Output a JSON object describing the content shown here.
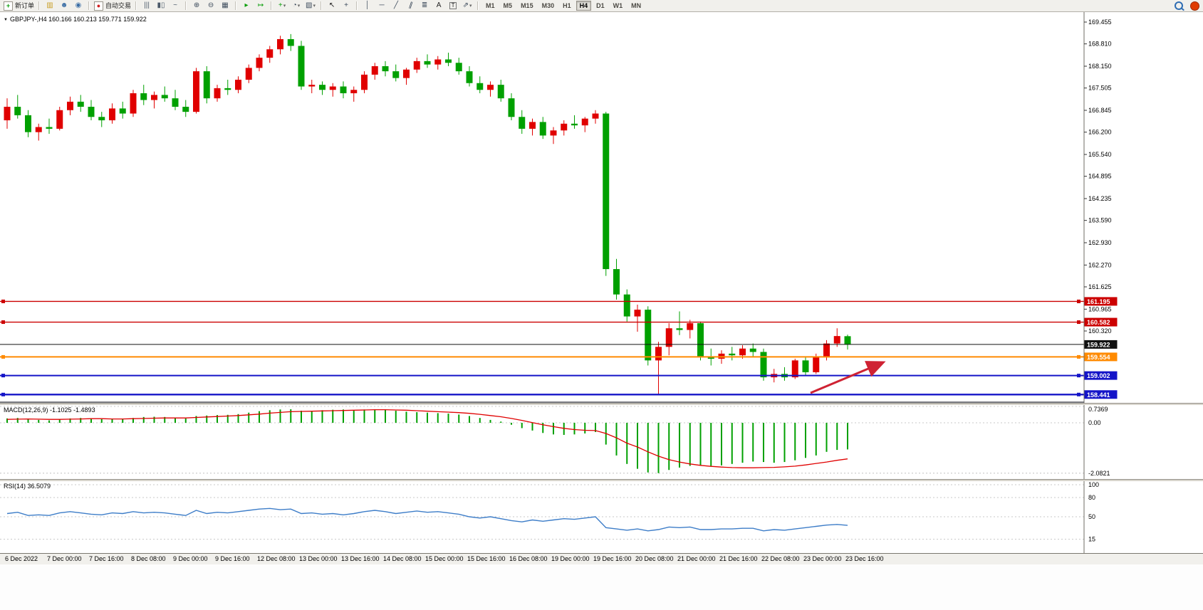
{
  "icons": {
    "caret": "▾",
    "chart_menu_arrow": "▼"
  },
  "toolbar": {
    "groups": [
      {
        "name": "trade",
        "items": [
          {
            "name": "new-order-button",
            "type": "labeled",
            "glyph": "+",
            "glyph_color": "#0b9e0b",
            "boxed": true,
            "label": "新订单"
          }
        ]
      },
      {
        "name": "windows",
        "items": [
          {
            "name": "market-watch-icon",
            "type": "icon",
            "glyph": "▥",
            "glyph_color": "#c79b1e"
          },
          {
            "name": "navigator-icon",
            "type": "icon",
            "glyph": "☻",
            "glyph_color": "#3b6ea5"
          },
          {
            "name": "terminal-icon",
            "type": "icon",
            "glyph": "◉",
            "glyph_color": "#3b6ea5"
          }
        ]
      },
      {
        "name": "autotrading",
        "items": [
          {
            "name": "auto-trading-button",
            "type": "labeled",
            "glyph": "●",
            "glyph_color": "#d22020",
            "boxed": true,
            "label": "自动交易"
          }
        ]
      },
      {
        "name": "chart-types",
        "items": [
          {
            "name": "bars-chart-button",
            "type": "icon",
            "glyph": "|||",
            "glyph_color": "#4c5a6a"
          },
          {
            "name": "candlestick-chart-button",
            "type": "icon",
            "glyph": "▮▯",
            "glyph_color": "#4c5a6a"
          },
          {
            "name": "line-chart-button",
            "type": "icon",
            "glyph": "~",
            "glyph_color": "#4c5a6a"
          }
        ]
      },
      {
        "name": "zoom",
        "items": [
          {
            "name": "zoom-in-button",
            "type": "icon",
            "glyph": "⊕",
            "glyph_color": "#3d4b5c"
          },
          {
            "name": "zoom-out-button",
            "type": "icon",
            "glyph": "⊖",
            "glyph_color": "#3d4b5c"
          },
          {
            "name": "tile-windows-button",
            "type": "icon",
            "glyph": "▦",
            "glyph_color": "#3d4b5c"
          }
        ]
      },
      {
        "name": "scrolling",
        "items": [
          {
            "name": "auto-scroll-button",
            "type": "icon",
            "glyph": "▸",
            "glyph_color": "#0b9e0b"
          },
          {
            "name": "chart-shift-button",
            "type": "icon",
            "glyph": "↦",
            "glyph_color": "#0b9e0b"
          }
        ]
      },
      {
        "name": "dropdowns",
        "items": [
          {
            "name": "indicators-button",
            "type": "icon-caret",
            "glyph": "+",
            "glyph_color": "#0b9e0b"
          },
          {
            "name": "periods-button",
            "type": "icon-caret",
            "glyph": "◔",
            "glyph_color": "#3d4b5c"
          },
          {
            "name": "templates-button",
            "type": "icon-caret",
            "glyph": "▧",
            "glyph_color": "#3d4b5c"
          }
        ]
      },
      {
        "name": "cursor-tools",
        "items": [
          {
            "name": "cursor-button",
            "type": "icon",
            "glyph": "↖",
            "glyph_color": "#111111"
          },
          {
            "name": "crosshair-button",
            "type": "icon",
            "glyph": "+",
            "glyph_color": "#3d4b5c"
          }
        ]
      },
      {
        "name": "draw-tools",
        "items": [
          {
            "name": "vertical-line-button",
            "type": "icon",
            "glyph": "│",
            "glyph_color": "#3d4b5c"
          },
          {
            "name": "horizontal-line-button",
            "type": "icon",
            "glyph": "─",
            "glyph_color": "#3d4b5c"
          },
          {
            "name": "trendline-button",
            "type": "icon",
            "glyph": "╱",
            "glyph_color": "#3d4b5c"
          },
          {
            "name": "channel-button",
            "type": "icon",
            "glyph": "∥",
            "glyph_color": "#3d4b5c",
            "slant": true
          },
          {
            "name": "fibonacci-button",
            "type": "icon",
            "glyph": "≣",
            "glyph_color": "#3d4b5c"
          },
          {
            "name": "text-button",
            "type": "icon",
            "glyph": "A",
            "glyph_color": "#222222"
          },
          {
            "name": "text-label-button",
            "type": "icon",
            "glyph": "T",
            "glyph_color": "#222222",
            "tbox": true
          },
          {
            "name": "arrows-button",
            "type": "icon-caret",
            "glyph": "⇗",
            "glyph_color": "#3d4b5c"
          }
        ]
      },
      {
        "name": "timeframes",
        "items": [
          {
            "name": "tf-m1-button",
            "type": "tf",
            "label": "M1"
          },
          {
            "name": "tf-m5-button",
            "type": "tf",
            "label": "M5"
          },
          {
            "name": "tf-m15-button",
            "type": "tf",
            "label": "M15"
          },
          {
            "name": "tf-m30-button",
            "type": "tf",
            "label": "M30"
          },
          {
            "name": "tf-h1-button",
            "type": "tf",
            "label": "H1"
          },
          {
            "name": "tf-h4-button",
            "type": "tf",
            "label": "H4",
            "active": true
          },
          {
            "name": "tf-d1-button",
            "type": "tf",
            "label": "D1"
          },
          {
            "name": "tf-w1-button",
            "type": "tf",
            "label": "W1"
          },
          {
            "name": "tf-mn-button",
            "type": "tf",
            "label": "MN"
          }
        ]
      }
    ],
    "right": [
      {
        "name": "search-button",
        "type": "search"
      },
      {
        "name": "community-button",
        "type": "badge",
        "color": "#e03c00"
      }
    ]
  },
  "chart_data": [
    {
      "type": "candlestick",
      "symbol": "GBPJPY-",
      "timeframe": "H4",
      "overlay_label": "GBPJPY-,H4 160.166 160.213 159.771 159.922",
      "up_color": "#e00000",
      "down_color": "#00a000",
      "y_ticks": [
        169.455,
        168.81,
        168.15,
        167.505,
        166.845,
        166.2,
        165.54,
        164.895,
        164.235,
        163.59,
        162.93,
        162.27,
        161.625,
        160.965,
        160.32
      ],
      "x_labels": [
        "6 Dec 2022",
        "7 Dec 00:00",
        "7 Dec 16:00",
        "8 Dec 08:00",
        "9 Dec 00:00",
        "9 Dec 16:00",
        "12 Dec 08:00",
        "13 Dec 00:00",
        "13 Dec 16:00",
        "14 Dec 08:00",
        "15 Dec 00:00",
        "15 Dec 16:00",
        "16 Dec 08:00",
        "19 Dec 00:00",
        "19 Dec 16:00",
        "20 Dec 08:00",
        "21 Dec 00:00",
        "21 Dec 16:00",
        "22 Dec 08:00",
        "23 Dec 00:00",
        "23 Dec 16:00"
      ],
      "ohlc": [
        [
          166.55,
          167.2,
          166.3,
          166.95
        ],
        [
          166.95,
          167.3,
          166.6,
          166.7
        ],
        [
          166.7,
          166.85,
          166.05,
          166.2
        ],
        [
          166.2,
          166.45,
          165.95,
          166.35
        ],
        [
          166.35,
          166.6,
          166.15,
          166.3
        ],
        [
          166.3,
          166.95,
          166.25,
          166.85
        ],
        [
          166.85,
          167.25,
          166.7,
          167.1
        ],
        [
          167.1,
          167.3,
          166.8,
          166.95
        ],
        [
          166.95,
          167.15,
          166.55,
          166.65
        ],
        [
          166.65,
          166.8,
          166.35,
          166.55
        ],
        [
          166.55,
          167.05,
          166.45,
          166.9
        ],
        [
          166.9,
          167.1,
          166.6,
          166.75
        ],
        [
          166.75,
          167.45,
          166.65,
          167.35
        ],
        [
          167.35,
          167.6,
          167.0,
          167.15
        ],
        [
          167.15,
          167.4,
          166.9,
          167.3
        ],
        [
          167.3,
          167.55,
          167.1,
          167.2
        ],
        [
          167.2,
          167.45,
          166.85,
          166.95
        ],
        [
          166.95,
          167.15,
          166.65,
          166.8
        ],
        [
          166.8,
          168.1,
          166.75,
          168.0
        ],
        [
          168.0,
          168.15,
          167.05,
          167.2
        ],
        [
          167.2,
          167.6,
          167.1,
          167.5
        ],
        [
          167.5,
          167.75,
          167.3,
          167.45
        ],
        [
          167.45,
          167.85,
          167.35,
          167.75
        ],
        [
          167.75,
          168.2,
          167.65,
          168.1
        ],
        [
          168.1,
          168.5,
          168.0,
          168.4
        ],
        [
          168.4,
          168.75,
          168.25,
          168.65
        ],
        [
          168.65,
          169.05,
          168.5,
          168.95
        ],
        [
          168.95,
          169.1,
          168.6,
          168.75
        ],
        [
          168.75,
          168.9,
          167.45,
          167.55
        ],
        [
          167.55,
          167.75,
          167.35,
          167.6
        ],
        [
          167.6,
          167.7,
          167.3,
          167.45
        ],
        [
          167.45,
          167.65,
          167.25,
          167.55
        ],
        [
          167.55,
          167.7,
          167.2,
          167.35
        ],
        [
          167.35,
          167.55,
          167.1,
          167.45
        ],
        [
          167.45,
          168.0,
          167.35,
          167.9
        ],
        [
          167.9,
          168.25,
          167.75,
          168.15
        ],
        [
          168.15,
          168.3,
          167.85,
          168.0
        ],
        [
          168.0,
          168.2,
          167.7,
          167.8
        ],
        [
          167.8,
          168.1,
          167.6,
          168.05
        ],
        [
          168.05,
          168.4,
          167.95,
          168.3
        ],
        [
          168.3,
          168.5,
          168.1,
          168.2
        ],
        [
          168.2,
          168.45,
          168.05,
          168.35
        ],
        [
          168.35,
          168.55,
          168.15,
          168.25
        ],
        [
          168.25,
          168.4,
          167.9,
          168.0
        ],
        [
          168.0,
          168.15,
          167.55,
          167.65
        ],
        [
          167.65,
          167.85,
          167.35,
          167.45
        ],
        [
          167.45,
          167.7,
          167.25,
          167.6
        ],
        [
          167.6,
          167.75,
          167.1,
          167.2
        ],
        [
          167.2,
          167.35,
          166.55,
          166.65
        ],
        [
          166.65,
          166.85,
          166.15,
          166.3
        ],
        [
          166.3,
          166.6,
          166.1,
          166.5
        ],
        [
          166.5,
          166.65,
          166.0,
          166.1
        ],
        [
          166.1,
          166.35,
          165.85,
          166.25
        ],
        [
          166.25,
          166.55,
          166.1,
          166.45
        ],
        [
          166.45,
          166.7,
          166.3,
          166.4
        ],
        [
          166.4,
          166.65,
          166.2,
          166.6
        ],
        [
          166.6,
          166.85,
          166.45,
          166.75
        ],
        [
          166.75,
          166.8,
          161.95,
          162.15
        ],
        [
          162.15,
          162.45,
          161.25,
          161.4
        ],
        [
          161.4,
          161.55,
          160.6,
          160.75
        ],
        [
          160.75,
          161.1,
          160.3,
          160.95
        ],
        [
          160.95,
          161.05,
          159.3,
          159.45
        ],
        [
          159.45,
          160.0,
          158.45,
          159.85
        ],
        [
          159.85,
          160.55,
          159.6,
          160.4
        ],
        [
          160.4,
          160.9,
          160.2,
          160.35
        ],
        [
          160.35,
          160.65,
          160.1,
          160.55
        ],
        [
          160.55,
          160.6,
          159.45,
          159.55
        ],
        [
          159.55,
          159.8,
          159.3,
          159.5
        ],
        [
          159.5,
          159.75,
          159.35,
          159.65
        ],
        [
          159.65,
          159.85,
          159.45,
          159.6
        ],
        [
          159.6,
          159.9,
          159.5,
          159.8
        ],
        [
          159.8,
          159.95,
          159.55,
          159.7
        ],
        [
          159.7,
          159.8,
          158.85,
          158.95
        ],
        [
          158.95,
          159.2,
          158.8,
          159.05
        ],
        [
          159.05,
          159.25,
          158.85,
          158.95
        ],
        [
          158.95,
          159.5,
          158.9,
          159.45
        ],
        [
          159.45,
          159.55,
          159.0,
          159.1
        ],
        [
          159.1,
          159.65,
          159.05,
          159.55
        ],
        [
          159.55,
          160.05,
          159.45,
          159.95
        ],
        [
          159.95,
          160.4,
          159.85,
          160.17
        ],
        [
          160.166,
          160.213,
          159.771,
          159.922
        ]
      ],
      "horizontal_lines": [
        {
          "price": 161.195,
          "label": "161.195",
          "color": "#cc0000",
          "width": 1.4
        },
        {
          "price": 160.582,
          "label": "160.582",
          "color": "#cc0000",
          "width": 1.4
        },
        {
          "price": 159.554,
          "label": "159.554",
          "color": "#ff8a00",
          "width": 2
        },
        {
          "price": 159.002,
          "label": "159.002",
          "color": "#1414c8",
          "width": 2
        },
        {
          "price": 158.441,
          "label": "158.441",
          "color": "#1414c8",
          "width": 2.4
        }
      ],
      "current_price": {
        "price": 159.922,
        "label": "159.922",
        "color": "#111111"
      },
      "arrow": {
        "color": "#cf2233"
      }
    },
    {
      "type": "bar",
      "name": "MACD(12,26,9)",
      "overlay_label": "MACD(12,26,9) -1.1025 -1.4893",
      "histogram_color": "#00a000",
      "signal_color": "#e00000",
      "y_ticks": [
        0.7369,
        0,
        -2.0821
      ],
      "y_tick_labels": [
        "0.7369",
        "0.00",
        "-2.0821"
      ],
      "values": [
        0.18,
        0.2,
        0.15,
        0.12,
        0.1,
        0.14,
        0.18,
        0.2,
        0.17,
        0.15,
        0.16,
        0.15,
        0.2,
        0.24,
        0.25,
        0.24,
        0.2,
        0.18,
        0.28,
        0.3,
        0.32,
        0.33,
        0.36,
        0.42,
        0.48,
        0.52,
        0.55,
        0.56,
        0.5,
        0.48,
        0.52,
        0.54,
        0.55,
        0.53,
        0.55,
        0.56,
        0.54,
        0.5,
        0.46,
        0.44,
        0.42,
        0.4,
        0.38,
        0.34,
        0.28,
        0.2,
        0.12,
        0.05,
        -0.08,
        -0.22,
        -0.32,
        -0.42,
        -0.48,
        -0.5,
        -0.48,
        -0.44,
        -0.38,
        -0.9,
        -1.35,
        -1.7,
        -1.9,
        -2.05,
        -2.08,
        -1.95,
        -1.85,
        -1.78,
        -1.75,
        -1.78,
        -1.76,
        -1.7,
        -1.65,
        -1.6,
        -1.62,
        -1.65,
        -1.62,
        -1.55,
        -1.45,
        -1.35,
        -1.2,
        -1.12,
        -1.1
      ],
      "signal": [
        0.14,
        0.15,
        0.16,
        0.15,
        0.14,
        0.14,
        0.15,
        0.16,
        0.17,
        0.17,
        0.16,
        0.16,
        0.17,
        0.18,
        0.19,
        0.2,
        0.2,
        0.2,
        0.22,
        0.24,
        0.26,
        0.28,
        0.3,
        0.33,
        0.36,
        0.4,
        0.43,
        0.46,
        0.47,
        0.48,
        0.49,
        0.5,
        0.51,
        0.52,
        0.53,
        0.54,
        0.54,
        0.53,
        0.52,
        0.5,
        0.48,
        0.46,
        0.44,
        0.42,
        0.39,
        0.35,
        0.3,
        0.25,
        0.18,
        0.1,
        0.01,
        -0.08,
        -0.16,
        -0.23,
        -0.28,
        -0.31,
        -0.32,
        -0.44,
        -0.62,
        -0.84,
        -1.0,
        -1.2,
        -1.38,
        -1.52,
        -1.62,
        -1.7,
        -1.76,
        -1.8,
        -1.83,
        -1.85,
        -1.86,
        -1.86,
        -1.85,
        -1.84,
        -1.82,
        -1.79,
        -1.74,
        -1.68,
        -1.62,
        -1.55,
        -1.49
      ]
    },
    {
      "type": "line",
      "name": "RSI(14)",
      "overlay_label": "RSI(14) 36.5079",
      "line_color": "#3d7dc8",
      "y_ticks": [
        100,
        80,
        50,
        15
      ],
      "y_tick_labels": [
        "100",
        "80",
        "50",
        "15"
      ],
      "values": [
        55,
        57,
        52,
        53,
        52,
        56,
        58,
        56,
        54,
        53,
        56,
        55,
        58,
        56,
        57,
        56,
        54,
        52,
        60,
        55,
        57,
        56,
        58,
        60,
        62,
        63,
        61,
        62,
        55,
        56,
        54,
        55,
        53,
        55,
        58,
        60,
        58,
        55,
        57,
        59,
        57,
        58,
        56,
        54,
        50,
        48,
        50,
        47,
        44,
        42,
        45,
        43,
        45,
        47,
        46,
        48,
        50,
        33,
        31,
        29,
        31,
        28,
        30,
        34,
        33,
        34,
        30,
        30,
        31,
        31,
        32,
        32,
        28,
        30,
        29,
        31,
        33,
        35,
        37,
        38,
        36.5
      ]
    }
  ]
}
